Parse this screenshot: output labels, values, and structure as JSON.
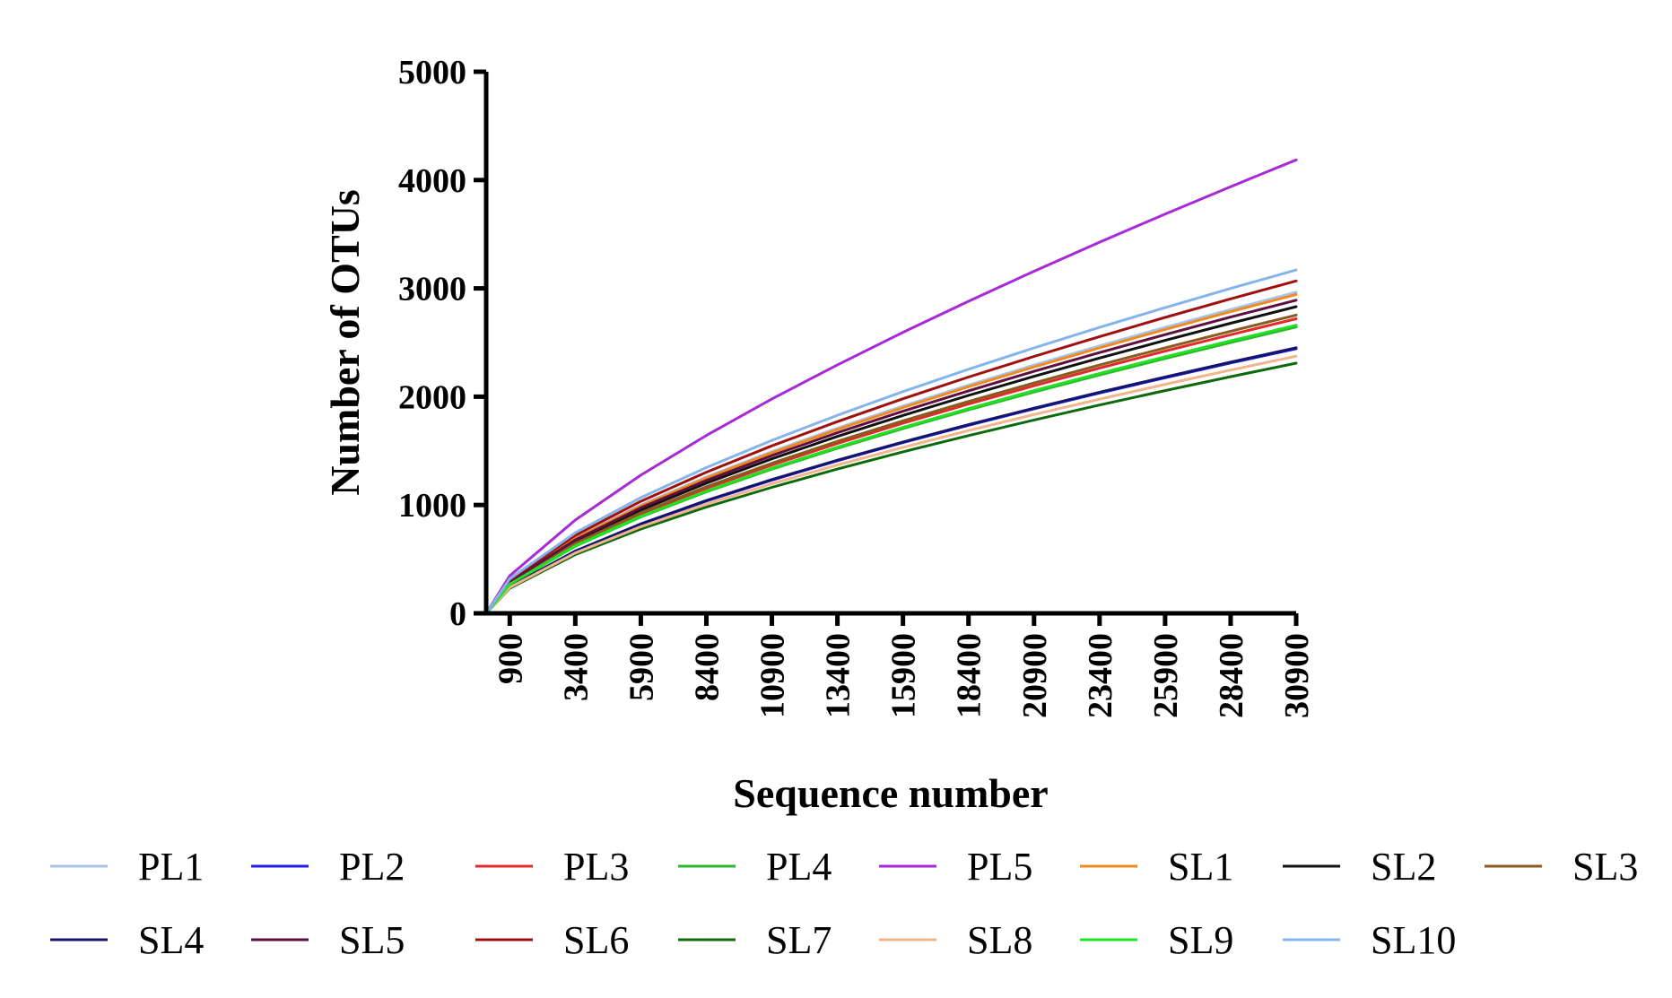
{
  "chart_data": {
    "type": "line",
    "title": "",
    "xlabel": "Sequence number",
    "ylabel": "Number of OTUs",
    "xlim": [
      0,
      30900
    ],
    "ylim": [
      0,
      5000
    ],
    "x_ticks": [
      900,
      3400,
      5900,
      8400,
      10900,
      13400,
      15900,
      18400,
      20900,
      23400,
      25900,
      28400,
      30900
    ],
    "x_tick_labels": [
      "900",
      "3400",
      "5900",
      "8400",
      "10900",
      "13400",
      "15900",
      "18400",
      "20900",
      "23400",
      "25900",
      "28400",
      "30900"
    ],
    "y_ticks": [
      0,
      1000,
      2000,
      3000,
      4000,
      5000
    ],
    "y_tick_labels": [
      "0",
      "1000",
      "2000",
      "3000",
      "4000",
      "5000"
    ],
    "x": [
      0,
      900,
      3400,
      5900,
      8400,
      10900,
      13400,
      15900,
      18400,
      20900,
      23400,
      25900,
      28400,
      30900
    ],
    "grid": false,
    "legend_position": "bottom",
    "series": [
      {
        "name": "PL1",
        "color": "#a9c4e8",
        "values": [
          0,
          298,
          696,
          999,
          1259,
          1493,
          1710,
          1914,
          2107,
          2292,
          2469,
          2640,
          2805,
          2965
        ]
      },
      {
        "name": "PL2",
        "color": "#1f1fdc",
        "values": [
          0,
          245,
          573,
          823,
          1037,
          1230,
          1409,
          1577,
          1736,
          1888,
          2034,
          2175,
          2311,
          2443
        ]
      },
      {
        "name": "PL3",
        "color": "#e12b2b",
        "values": [
          0,
          273,
          638,
          916,
          1155,
          1369,
          1568,
          1755,
          1932,
          2101,
          2264,
          2421,
          2572,
          2719
        ]
      },
      {
        "name": "PL4",
        "color": "#2db52d",
        "values": [
          0,
          266,
          620,
          890,
          1122,
          1331,
          1524,
          1706,
          1878,
          2043,
          2200,
          2353,
          2500,
          2643
        ]
      },
      {
        "name": "PL5",
        "color": "#a82ad6",
        "values": [
          0,
          347,
          862,
          1276,
          1642,
          1979,
          2294,
          2594,
          2881,
          3158,
          3426,
          3686,
          3939,
          4186
        ]
      },
      {
        "name": "SL1",
        "color": "#f08a1f",
        "values": [
          0,
          296,
          691,
          992,
          1250,
          1483,
          1698,
          1900,
          2092,
          2275,
          2451,
          2621,
          2785,
          2944
        ]
      },
      {
        "name": "SL2",
        "color": "#111111",
        "values": [
          0,
          285,
          664,
          954,
          1202,
          1426,
          1633,
          1827,
          2012,
          2188,
          2357,
          2520,
          2678,
          2831
        ]
      },
      {
        "name": "SL3",
        "color": "#8b5a1e",
        "values": [
          0,
          277,
          646,
          927,
          1169,
          1386,
          1588,
          1777,
          1956,
          2127,
          2292,
          2451,
          2604,
          2753
        ]
      },
      {
        "name": "SL4",
        "color": "#14146e",
        "values": [
          0,
          247,
          575,
          826,
          1041,
          1235,
          1414,
          1582,
          1742,
          1894,
          2041,
          2182,
          2319,
          2451
        ]
      },
      {
        "name": "SL5",
        "color": "#5e1040",
        "values": [
          0,
          291,
          678,
          974,
          1227,
          1456,
          1667,
          1866,
          2054,
          2234,
          2407,
          2573,
          2735,
          2891
        ]
      },
      {
        "name": "SL6",
        "color": "#a01010",
        "values": [
          0,
          309,
          720,
          1034,
          1303,
          1546,
          1770,
          1981,
          2181,
          2372,
          2555,
          2732,
          2903,
          3069
        ]
      },
      {
        "name": "SL7",
        "color": "#0b6a0b",
        "values": [
          0,
          232,
          542,
          778,
          981,
          1163,
          1332,
          1491,
          1641,
          1785,
          1923,
          2056,
          2185,
          2310
        ]
      },
      {
        "name": "SL8",
        "color": "#f2b48a",
        "values": [
          0,
          239,
          557,
          800,
          1008,
          1196,
          1369,
          1532,
          1687,
          1835,
          1977,
          2114,
          2246,
          2374
        ]
      },
      {
        "name": "SL9",
        "color": "#22e022",
        "values": [
          0,
          268,
          624,
          896,
          1129,
          1340,
          1534,
          1717,
          1890,
          2056,
          2215,
          2368,
          2516,
          2660
        ]
      },
      {
        "name": "SL10",
        "color": "#84b4ea",
        "values": [
          0,
          319,
          744,
          1068,
          1346,
          1597,
          1829,
          2047,
          2253,
          2450,
          2640,
          2822,
          2999,
          3170
        ]
      }
    ]
  }
}
